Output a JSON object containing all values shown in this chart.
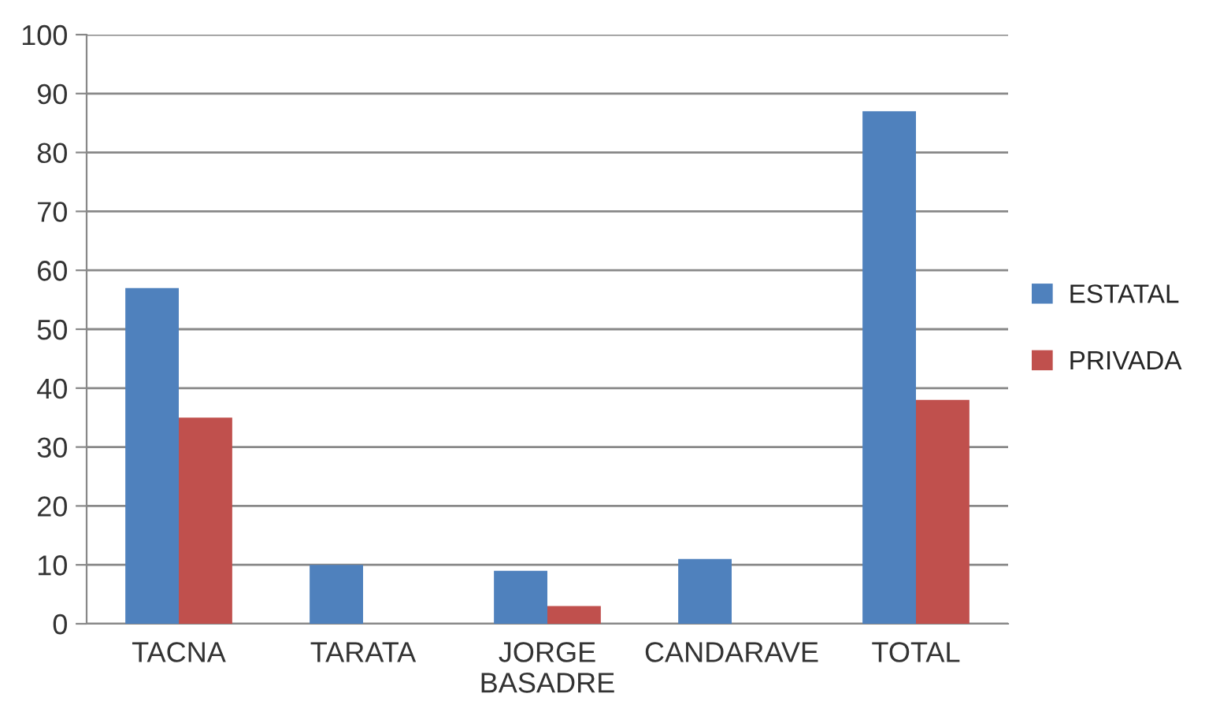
{
  "chart_data": {
    "type": "bar",
    "categories": [
      "TACNA",
      "TARATA",
      "JORGE\nBASADRE",
      "CANDARAVE",
      "TOTAL"
    ],
    "series": [
      {
        "name": "ESTATAL",
        "color": "#4f81bd",
        "values": [
          57,
          10,
          9,
          11,
          87
        ]
      },
      {
        "name": "PRIVADA",
        "color": "#c0504d",
        "values": [
          35,
          null,
          3,
          null,
          38
        ]
      }
    ],
    "ylim": [
      0,
      100
    ],
    "yticks": [
      0,
      10,
      20,
      30,
      40,
      50,
      60,
      70,
      80,
      90,
      100
    ],
    "grid": "y",
    "legend": "right"
  }
}
